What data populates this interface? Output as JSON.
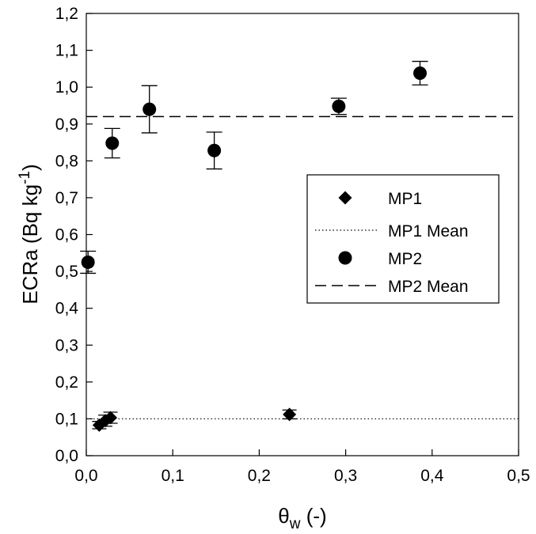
{
  "chart_data": {
    "type": "scatter",
    "xlabel": {
      "main": "θ",
      "sub": "w",
      "suffix": " (-)"
    },
    "ylabel": {
      "main": "ECRa (Bq kg",
      "sup": "-1",
      "suffix": ")"
    },
    "xlim": [
      0.0,
      0.5
    ],
    "ylim": [
      0.0,
      1.2
    ],
    "x_ticks": [
      0.0,
      0.1,
      0.2,
      0.3,
      0.4,
      0.5
    ],
    "x_tick_labels": [
      "0,0",
      "0,1",
      "0,2",
      "0,3",
      "0,4",
      "0,5"
    ],
    "y_ticks": [
      0.0,
      0.1,
      0.2,
      0.3,
      0.4,
      0.5,
      0.6,
      0.7,
      0.8,
      0.9,
      1.0,
      1.1,
      1.2
    ],
    "y_tick_labels": [
      "0,0",
      "0,1",
      "0,2",
      "0,3",
      "0,4",
      "0,5",
      "0,6",
      "0,7",
      "0,8",
      "0,9",
      "1,0",
      "1,1",
      "1,2"
    ],
    "grid": false,
    "legend_position": "center-right",
    "series": [
      {
        "name": "MP1",
        "marker": "diamond",
        "color": "#000000",
        "points": [
          {
            "x": 0.015,
            "y": 0.083,
            "err": 0.01
          },
          {
            "x": 0.022,
            "y": 0.095,
            "err": 0.015
          },
          {
            "x": 0.028,
            "y": 0.103,
            "err": 0.015
          },
          {
            "x": 0.235,
            "y": 0.112,
            "err": 0.012
          }
        ]
      },
      {
        "name": "MP1 Mean",
        "line": "dotted",
        "color": "#000000",
        "y": 0.1
      },
      {
        "name": "MP2",
        "marker": "circle",
        "color": "#000000",
        "points": [
          {
            "x": 0.002,
            "y": 0.525,
            "err": 0.03
          },
          {
            "x": 0.03,
            "y": 0.848,
            "err": 0.04
          },
          {
            "x": 0.073,
            "y": 0.94,
            "err": 0.064
          },
          {
            "x": 0.148,
            "y": 0.828,
            "err": 0.05
          },
          {
            "x": 0.292,
            "y": 0.948,
            "err": 0.022
          },
          {
            "x": 0.386,
            "y": 1.038,
            "err": 0.032
          }
        ]
      },
      {
        "name": "MP2 Mean",
        "line": "dashed",
        "color": "#000000",
        "y": 0.92
      }
    ]
  }
}
